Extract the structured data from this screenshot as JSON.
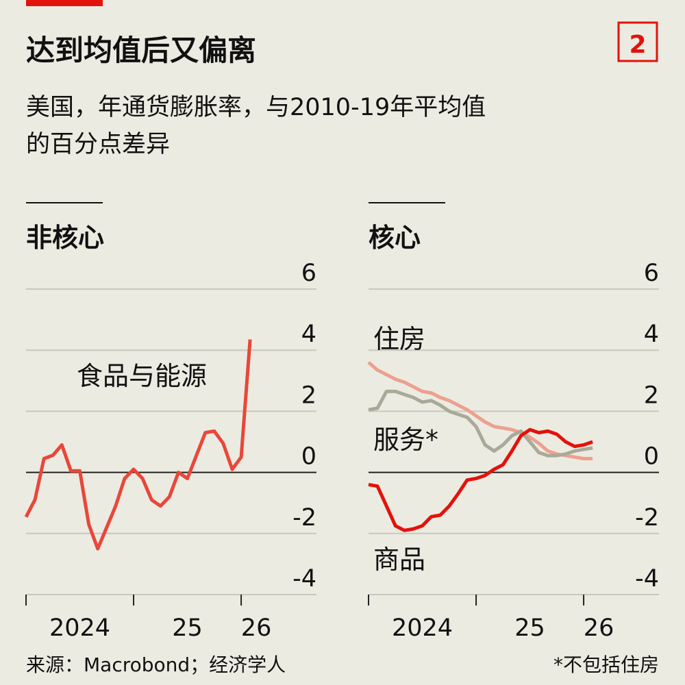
{
  "title": "达到均值后又偏离",
  "badge": "2",
  "subtitle": [
    "美国，年通货膨胀率，与2010-19年平均值",
    "的百分点差异"
  ],
  "source": "来源：Macrobond；经济学人",
  "note": "*不包括住房",
  "chart_data": [
    {
      "type": "line",
      "title": "非核心",
      "x": [
        2024,
        2024.083,
        2024.167,
        2024.25,
        2024.333,
        2024.417,
        2024.5,
        2024.583,
        2024.667,
        2024.75,
        2024.833,
        2024.917,
        2025,
        2025.083,
        2025.167,
        2025.25,
        2025.333,
        2025.417,
        2025.5,
        2025.583,
        2025.667,
        2025.75,
        2025.833,
        2025.917,
        2026,
        2026.083
      ],
      "series": [
        {
          "name": "食品与能源",
          "color": "#e8473a",
          "values": [
            -1.46,
            -0.9,
            0.45,
            0.56,
            0.9,
            0.05,
            0.05,
            -1.7,
            -2.5,
            -1.8,
            -1.1,
            -0.2,
            0.1,
            -0.2,
            -0.9,
            -1.1,
            -0.8,
            0,
            -0.2,
            0.55,
            1.3,
            1.35,
            0.95,
            0.1,
            0.5,
            4.35
          ]
        }
      ],
      "xlim": [
        2024,
        2026.7
      ],
      "xticks": [
        2024,
        {
          "value": 2025,
          "label": "25"
        },
        {
          "value": 2026,
          "label": "26"
        }
      ],
      "ylim": [
        -4,
        6
      ],
      "yticks": [
        6,
        4,
        2,
        0,
        -2,
        -4
      ],
      "grid": true
    },
    {
      "type": "line",
      "title": "核心",
      "x": [
        2024,
        2024.083,
        2024.167,
        2024.25,
        2024.333,
        2024.417,
        2024.5,
        2024.583,
        2024.667,
        2024.75,
        2024.833,
        2024.917,
        2025,
        2025.083,
        2025.167,
        2025.25,
        2025.333,
        2025.417,
        2025.5,
        2025.583,
        2025.667,
        2025.75,
        2025.833,
        2025.917,
        2026,
        2026.083
      ],
      "series": [
        {
          "name": "住房",
          "color": "#eda08f",
          "values": [
            3.6,
            3.35,
            3.2,
            3.05,
            2.95,
            2.8,
            2.65,
            2.6,
            2.45,
            2.35,
            2.2,
            2.05,
            1.85,
            1.65,
            1.5,
            1.45,
            1.4,
            1.3,
            1.15,
            0.95,
            0.7,
            0.6,
            0.55,
            0.5,
            0.45,
            0.45
          ]
        },
        {
          "name": "服务*",
          "color": "#a9a99a",
          "values": [
            2.05,
            2.1,
            2.65,
            2.65,
            2.55,
            2.45,
            2.3,
            2.35,
            2.2,
            2.0,
            1.9,
            1.8,
            1.5,
            0.9,
            0.7,
            0.9,
            1.2,
            1.35,
            1.0,
            0.65,
            0.55,
            0.55,
            0.6,
            0.7,
            0.75,
            0.8
          ]
        },
        {
          "name": "商品",
          "color": "#e3120b",
          "values": [
            -0.4,
            -0.45,
            -1.1,
            -1.75,
            -1.9,
            -1.85,
            -1.75,
            -1.45,
            -1.4,
            -1.1,
            -0.7,
            -0.25,
            -0.2,
            -0.1,
            0.1,
            0.25,
            0.7,
            1.2,
            1.4,
            1.3,
            1.35,
            1.25,
            1.0,
            0.85,
            0.9,
            1.0
          ]
        }
      ],
      "xlim": [
        2024,
        2026.7
      ],
      "xticks": [
        2024,
        {
          "value": 2025,
          "label": "25"
        },
        {
          "value": 2026,
          "label": "26"
        }
      ],
      "ylim": [
        -4,
        6
      ],
      "yticks": [
        6,
        4,
        2,
        0,
        -2,
        -4
      ],
      "grid": true
    }
  ]
}
